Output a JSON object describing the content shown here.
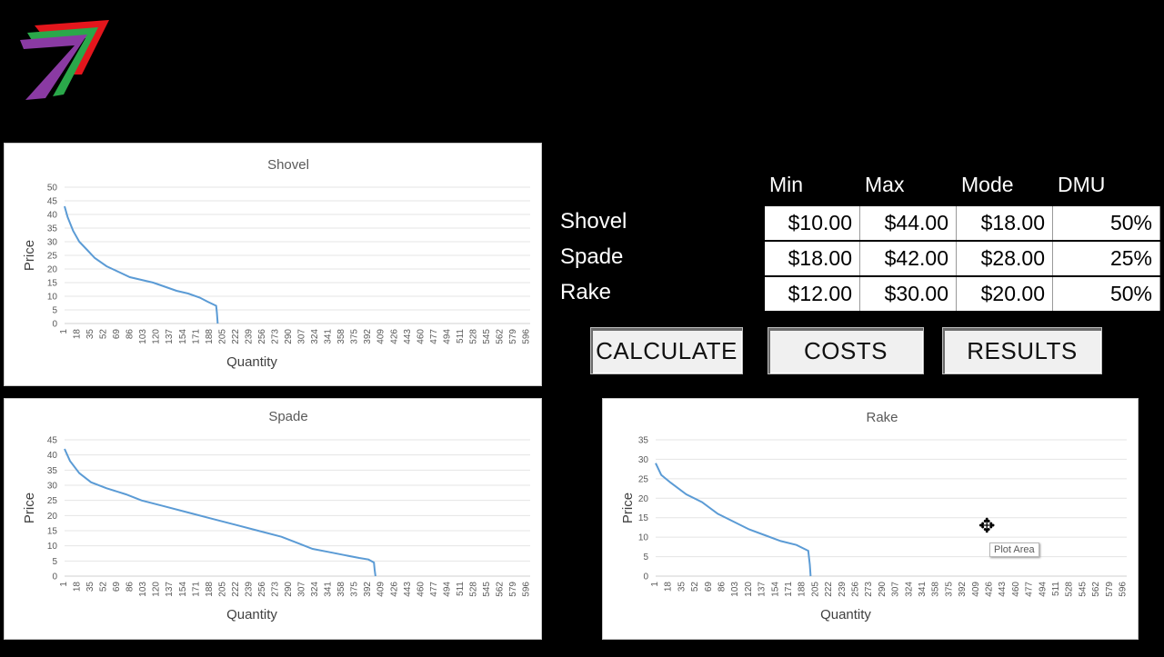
{
  "table": {
    "headers": [
      "Min",
      "Max",
      "Mode",
      "DMU"
    ],
    "rows": [
      {
        "label": "Shovel",
        "min": "$10.00",
        "max": "$44.00",
        "mode": "$18.00",
        "dmu": "50%"
      },
      {
        "label": "Spade",
        "min": "$18.00",
        "max": "$42.00",
        "mode": "$28.00",
        "dmu": "25%"
      },
      {
        "label": "Rake",
        "min": "$12.00",
        "max": "$30.00",
        "mode": "$20.00",
        "dmu": "50%"
      }
    ]
  },
  "buttons": {
    "calculate": "CALCULATE",
    "costs": "COSTS",
    "results": "RESULTS"
  },
  "tooltip": "Plot Area",
  "colors": {
    "series": "#5b9bd5",
    "background": "#000000"
  },
  "chart_data": [
    {
      "type": "line",
      "title": "Shovel",
      "xlabel": "Quantity",
      "ylabel": "Price",
      "ylim": [
        0,
        50
      ],
      "yticks": [
        0,
        5,
        10,
        15,
        20,
        25,
        30,
        35,
        40,
        45,
        50
      ],
      "xticks": [
        "1",
        "18",
        "35",
        "52",
        "69",
        "86",
        "103",
        "120",
        "137",
        "154",
        "171",
        "188",
        "205",
        "222",
        "239",
        "256",
        "273",
        "290",
        "307",
        "324",
        "341",
        "358",
        "375",
        "392",
        "409",
        "426",
        "443",
        "460",
        "477",
        "494",
        "511",
        "528",
        "545",
        "562",
        "579",
        "596"
      ],
      "xmax": 600,
      "grid": true,
      "series": [
        {
          "x": [
            1,
            5,
            12,
            20,
            30,
            40,
            55,
            70,
            85,
            100,
            115,
            130,
            145,
            160,
            175,
            185,
            196,
            197,
            198
          ],
          "y": [
            43,
            39,
            34,
            30,
            27,
            24,
            21,
            19,
            17,
            16,
            15,
            13.5,
            12,
            11,
            9.5,
            8,
            6.5,
            4,
            0
          ]
        }
      ]
    },
    {
      "type": "line",
      "title": "Spade",
      "xlabel": "Quantity",
      "ylabel": "Price",
      "ylim": [
        0,
        45
      ],
      "yticks": [
        0,
        5,
        10,
        15,
        20,
        25,
        30,
        35,
        40,
        45
      ],
      "xticks": [
        "1",
        "18",
        "35",
        "52",
        "69",
        "86",
        "103",
        "120",
        "137",
        "154",
        "171",
        "188",
        "205",
        "222",
        "239",
        "256",
        "273",
        "290",
        "307",
        "324",
        "341",
        "358",
        "375",
        "392",
        "409",
        "426",
        "443",
        "460",
        "477",
        "494",
        "511",
        "528",
        "545",
        "562",
        "579",
        "596"
      ],
      "xmax": 600,
      "grid": true,
      "series": [
        {
          "x": [
            1,
            8,
            20,
            35,
            55,
            80,
            100,
            130,
            160,
            190,
            220,
            250,
            280,
            300,
            320,
            340,
            360,
            380,
            392,
            399,
            400,
            401
          ],
          "y": [
            42,
            38,
            34,
            31,
            29,
            27,
            25,
            23,
            21,
            19,
            17,
            15,
            13,
            11,
            9,
            8,
            7,
            6,
            5.5,
            4.5,
            2,
            0
          ]
        }
      ]
    },
    {
      "type": "line",
      "title": "Rake",
      "xlabel": "Quantity",
      "ylabel": "Price",
      "ylim": [
        0,
        35
      ],
      "yticks": [
        0,
        5,
        10,
        15,
        20,
        25,
        30,
        35
      ],
      "xticks": [
        "1",
        "18",
        "35",
        "52",
        "69",
        "86",
        "103",
        "120",
        "137",
        "154",
        "171",
        "188",
        "205",
        "222",
        "239",
        "256",
        "273",
        "290",
        "307",
        "324",
        "341",
        "358",
        "375",
        "392",
        "409",
        "426",
        "443",
        "460",
        "477",
        "494",
        "511",
        "528",
        "545",
        "562",
        "579",
        "596"
      ],
      "xmax": 600,
      "grid": true,
      "series": [
        {
          "x": [
            1,
            8,
            20,
            40,
            60,
            80,
            100,
            120,
            140,
            160,
            180,
            195,
            197,
            198
          ],
          "y": [
            29,
            26,
            24,
            21,
            19,
            16,
            14,
            12,
            10.5,
            9,
            8,
            6.5,
            3,
            0
          ]
        }
      ]
    }
  ]
}
